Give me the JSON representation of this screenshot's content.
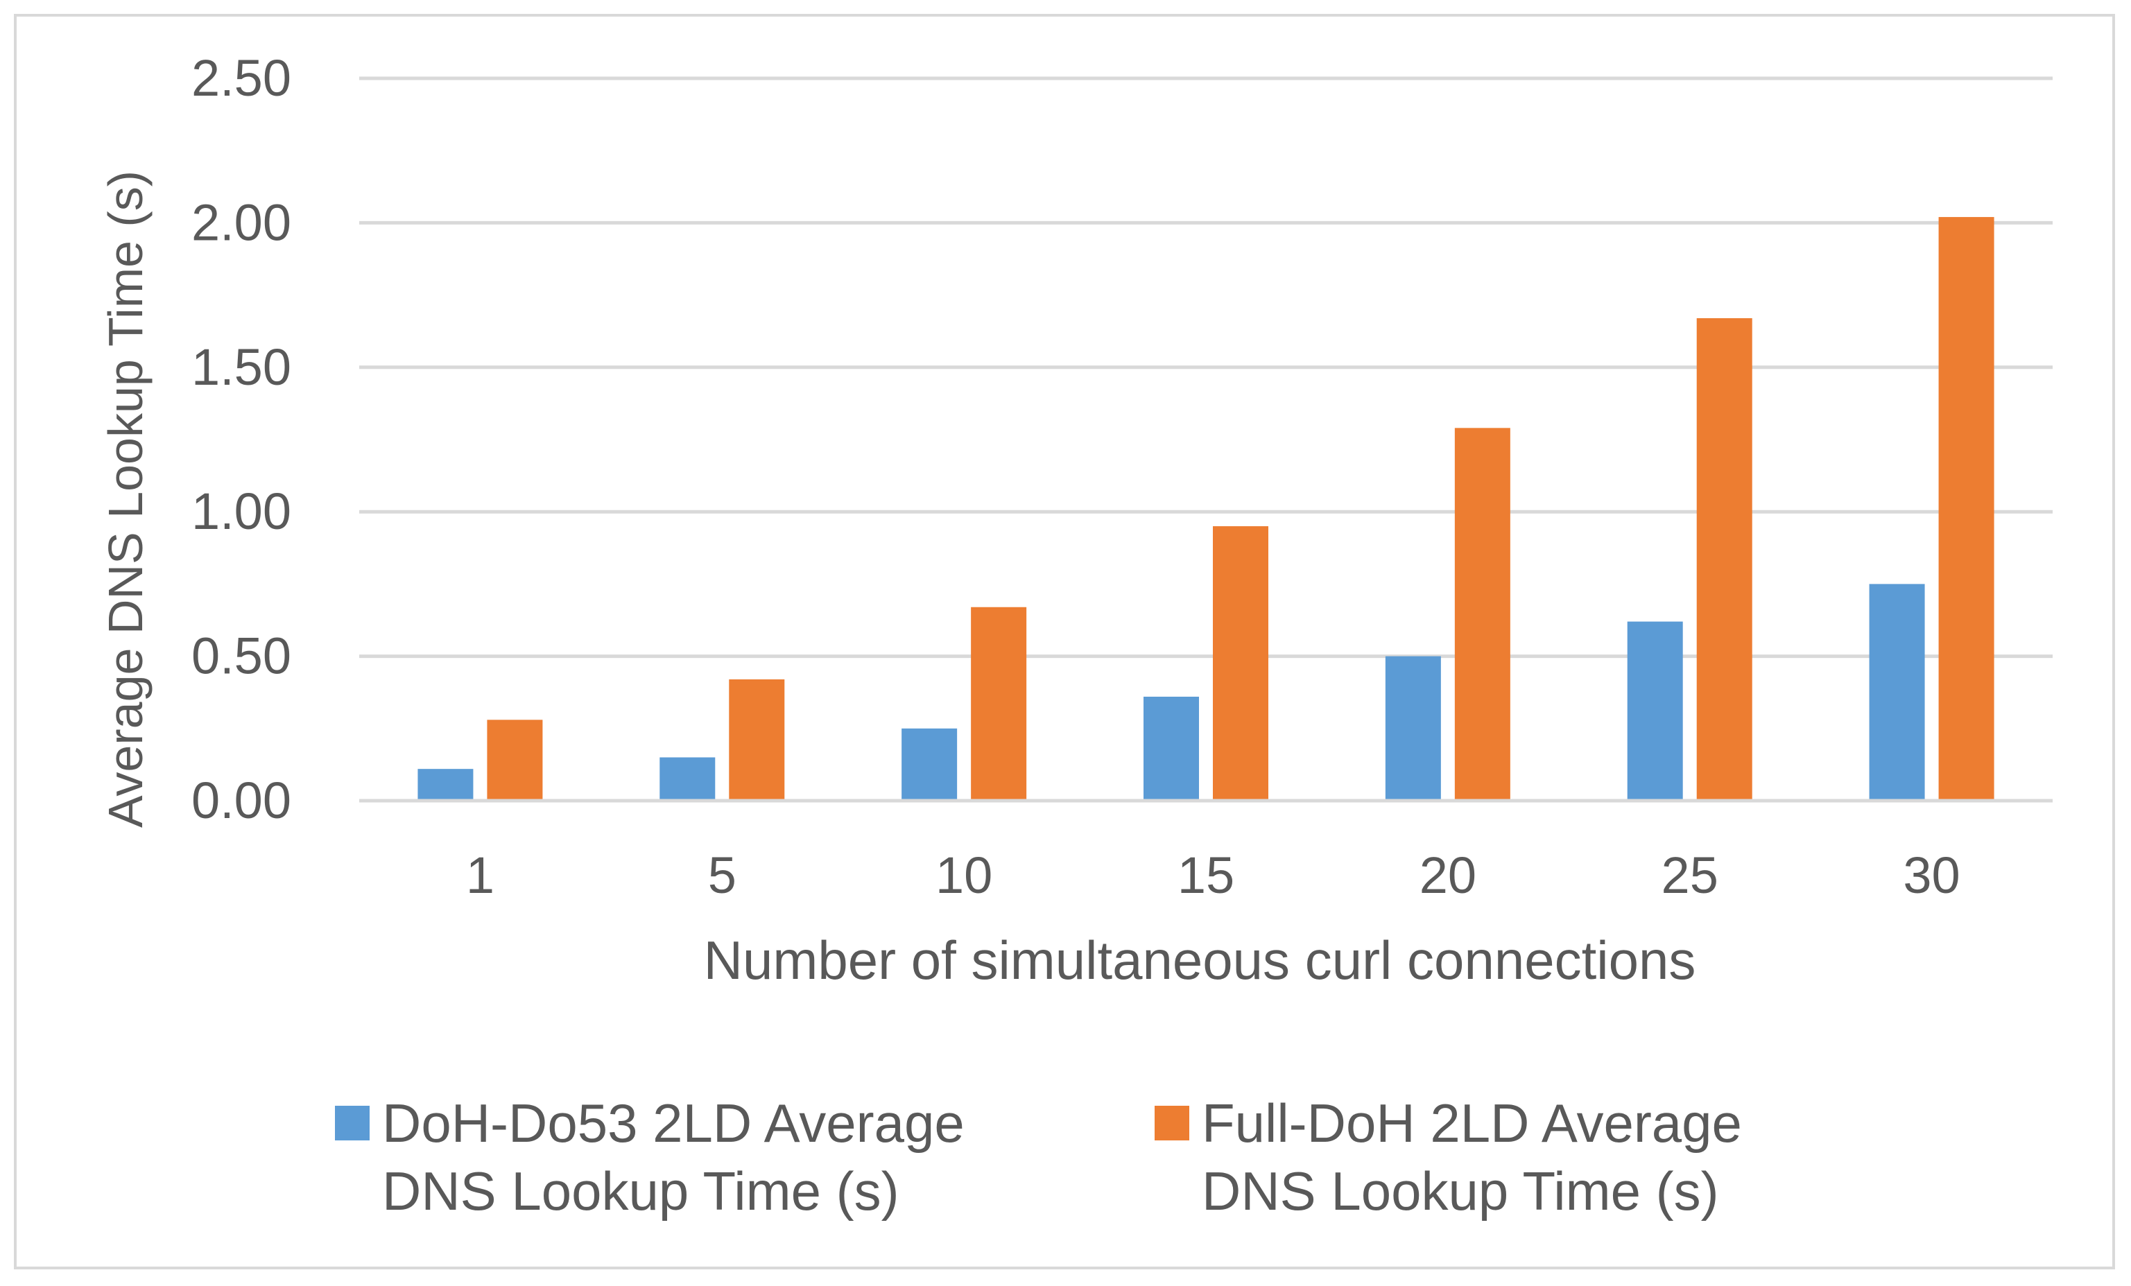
{
  "chart_data": {
    "type": "bar",
    "title": "",
    "xlabel": "Number of simultaneous curl connections",
    "ylabel": "Average DNS Lookup Time (s)",
    "categories": [
      "1",
      "5",
      "10",
      "15",
      "20",
      "25",
      "30"
    ],
    "ylim": [
      0,
      2.5
    ],
    "yticks": [
      "0.00",
      "0.50",
      "1.00",
      "1.50",
      "2.00",
      "2.50"
    ],
    "grid": true,
    "legend_position": "bottom",
    "series": [
      {
        "name": "DoH-Do53 2LD Average DNS Lookup Time (s)",
        "legend_lines": [
          "DoH-Do53 2LD Average",
          "DNS Lookup Time (s)"
        ],
        "color": "#5b9bd5",
        "values": [
          0.11,
          0.15,
          0.25,
          0.36,
          0.5,
          0.62,
          0.75
        ]
      },
      {
        "name": "Full-DoH 2LD Average DNS Lookup Time (s)",
        "legend_lines": [
          "Full-DoH 2LD Average",
          "DNS Lookup Time (s)"
        ],
        "color": "#ed7d31",
        "values": [
          0.28,
          0.42,
          0.67,
          0.95,
          1.29,
          1.67,
          2.02
        ]
      }
    ]
  }
}
